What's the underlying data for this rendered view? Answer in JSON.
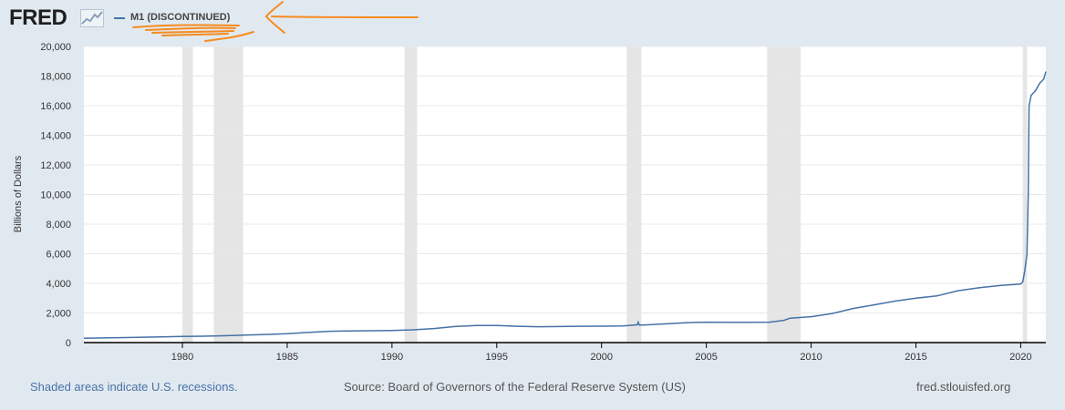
{
  "header": {
    "logo_text": "FRED",
    "logo_icon": "chart-trend-icon",
    "legend_label": "M1 (DISCONTINUED)",
    "series_color": "#4572a7"
  },
  "annotation_color": "#f68b1f",
  "chart_data": {
    "type": "line",
    "title": "",
    "xlabel": "",
    "ylabel": "Billions of Dollars",
    "xlim": [
      1975.3,
      2021.2
    ],
    "ylim": [
      0,
      20000
    ],
    "yticks": [
      0,
      2000,
      4000,
      6000,
      8000,
      10000,
      12000,
      14000,
      16000,
      18000,
      20000
    ],
    "ytick_labels": [
      "0",
      "2,000",
      "4,000",
      "6,000",
      "8,000",
      "10,000",
      "12,000",
      "14,000",
      "16,000",
      "18,000",
      "20,000"
    ],
    "xticks": [
      1980,
      1985,
      1990,
      1995,
      2000,
      2005,
      2010,
      2015,
      2020
    ],
    "xtick_labels": [
      "1980",
      "1985",
      "1990",
      "1995",
      "2000",
      "2005",
      "2010",
      "2015",
      "2020"
    ],
    "grid": true,
    "recessions": [
      [
        1980.0,
        1980.5
      ],
      [
        1981.5,
        1982.9
      ],
      [
        1990.6,
        1991.2
      ],
      [
        2001.2,
        2001.9
      ],
      [
        2007.9,
        2009.5
      ],
      [
        2020.1,
        2020.3
      ]
    ],
    "series": [
      {
        "values_x": [
          1975.3,
          1977,
          1979,
          1980,
          1981,
          1982,
          1983,
          1984,
          1985,
          1986,
          1987,
          1988,
          1989,
          1990,
          1991,
          1992,
          1993,
          1994,
          1995,
          1996,
          1997,
          1998,
          1999,
          2000,
          2001,
          2001.7,
          2001.75,
          2001.8,
          2002,
          2003,
          2004,
          2005,
          2006,
          2007,
          2008,
          2008.7,
          2009,
          2010,
          2011,
          2012,
          2013,
          2014,
          2015,
          2016,
          2017,
          2018,
          2019,
          2020.0,
          2020.1,
          2020.2,
          2020.3,
          2020.36,
          2020.4,
          2020.5,
          2020.7,
          2020.9,
          2021.1,
          2021.2
        ],
        "values_y": [
          290,
          330,
          380,
          410,
          430,
          460,
          510,
          550,
          600,
          680,
          760,
          790,
          800,
          820,
          860,
          950,
          1080,
          1150,
          1150,
          1100,
          1070,
          1080,
          1100,
          1110,
          1120,
          1200,
          1380,
          1180,
          1190,
          1260,
          1340,
          1380,
          1370,
          1370,
          1380,
          1500,
          1650,
          1750,
          1960,
          2300,
          2550,
          2800,
          3000,
          3150,
          3500,
          3700,
          3850,
          3950,
          4100,
          4900,
          6000,
          10000,
          16000,
          16700,
          17000,
          17500,
          17800,
          18300
        ]
      }
    ]
  },
  "footer": {
    "recession_note": "Shaded areas indicate U.S. recessions.",
    "source": "Source: Board of Governors of the Federal Reserve System (US)",
    "site": "fred.stlouisfed.org"
  }
}
